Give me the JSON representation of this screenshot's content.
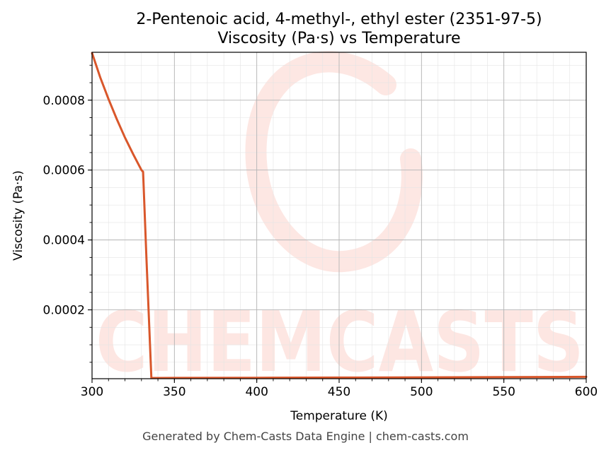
{
  "chart_data": {
    "type": "line",
    "title_line1": "2-Pentenoic acid, 4-methyl-, ethyl ester (2351-97-5)",
    "title_line2": "Viscosity (Pa·s) vs Temperature",
    "xlabel": "Temperature (K)",
    "ylabel": "Viscosity (Pa·s)",
    "xlim": [
      300,
      600
    ],
    "ylim": [
      3e-06,
      0.000937
    ],
    "x_ticks": [
      300,
      350,
      400,
      450,
      500,
      550,
      600
    ],
    "x_tick_labels": [
      "300",
      "350",
      "400",
      "450",
      "500",
      "550",
      "600"
    ],
    "y_ticks": [
      0.0002,
      0.0004,
      0.0006,
      0.0008
    ],
    "y_tick_labels": [
      "0.0002",
      "0.0004",
      "0.0006",
      "0.0008"
    ],
    "grid": true,
    "series": [
      {
        "color": "#d9572b",
        "x": [
          300,
          305,
          310,
          315,
          320,
          325,
          330,
          331,
          333,
          336,
          340,
          350,
          400,
          450,
          500,
          550,
          600
        ],
        "y": [
          0.000935,
          0.000865,
          0.000803,
          0.000746,
          0.000693,
          0.000645,
          0.0006,
          0.000595,
          0.00035,
          5e-06,
          5e-06,
          5.2e-06,
          5.6e-06,
          6.2e-06,
          6.8e-06,
          7.5e-06,
          8.2e-06
        ]
      }
    ],
    "watermark": "CHEMCASTS"
  },
  "footer": "Generated by Chem-Casts Data Engine | chem-casts.com"
}
